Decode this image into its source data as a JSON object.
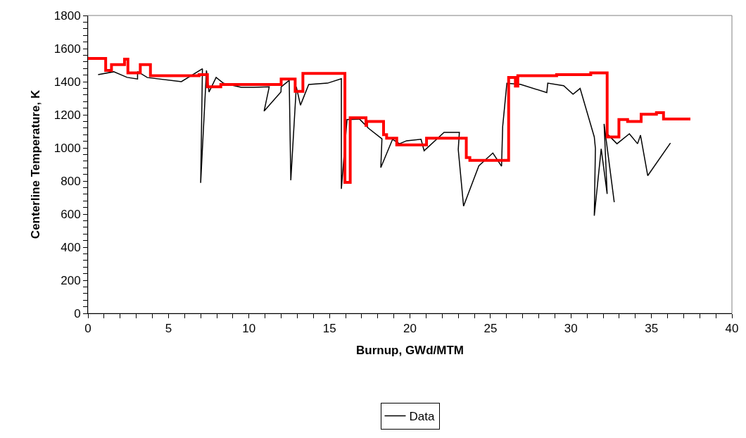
{
  "chart_data": {
    "type": "line",
    "xlabel": "Burnup, GWd/MTM",
    "ylabel": "Centerline Temperature, K",
    "xlim": [
      0,
      40
    ],
    "xticks": [
      0,
      {
        "value": 1,
        "label": null
      },
      {
        "value": 2,
        "label": null
      },
      {
        "value": 3,
        "label": null
      },
      {
        "value": 4,
        "label": null
      },
      5,
      {
        "value": 6,
        "label": null
      },
      {
        "value": 7,
        "label": null
      },
      {
        "value": 8,
        "label": null
      },
      {
        "value": 9,
        "label": null
      },
      10,
      {
        "value": 11,
        "label": null
      },
      {
        "value": 12,
        "label": null
      },
      {
        "value": 13,
        "label": null
      },
      {
        "value": 14,
        "label": null
      },
      15,
      {
        "value": 16,
        "label": null
      },
      {
        "value": 17,
        "label": null
      },
      {
        "value": 18,
        "label": null
      },
      {
        "value": 19,
        "label": null
      },
      20,
      {
        "value": 21,
        "label": null
      },
      {
        "value": 22,
        "label": null
      },
      {
        "value": 23,
        "label": null
      },
      {
        "value": 24,
        "label": null
      },
      25,
      {
        "value": 26,
        "label": null
      },
      {
        "value": 27,
        "label": null
      },
      {
        "value": 28,
        "label": null
      },
      {
        "value": 29,
        "label": null
      },
      30,
      {
        "value": 31,
        "label": null
      },
      {
        "value": 32,
        "label": null
      },
      {
        "value": 33,
        "label": null
      },
      {
        "value": 34,
        "label": null
      },
      35,
      {
        "value": 36,
        "label": null
      },
      {
        "value": 37,
        "label": null
      },
      {
        "value": 38,
        "label": null
      },
      {
        "value": 39,
        "label": null
      },
      40
    ],
    "ylim": [
      0,
      1800
    ],
    "yticks": [
      0,
      {
        "value": 40,
        "label": null
      },
      {
        "value": 80,
        "label": null
      },
      {
        "value": 120,
        "label": null
      },
      {
        "value": 160,
        "label": null
      },
      200,
      {
        "value": 240,
        "label": null
      },
      {
        "value": 280,
        "label": null
      },
      {
        "value": 320,
        "label": null
      },
      {
        "value": 360,
        "label": null
      },
      400,
      {
        "value": 440,
        "label": null
      },
      {
        "value": 480,
        "label": null
      },
      {
        "value": 520,
        "label": null
      },
      {
        "value": 560,
        "label": null
      },
      600,
      {
        "value": 640,
        "label": null
      },
      {
        "value": 680,
        "label": null
      },
      {
        "value": 720,
        "label": null
      },
      {
        "value": 760,
        "label": null
      },
      800,
      {
        "value": 840,
        "label": null
      },
      {
        "value": 880,
        "label": null
      },
      {
        "value": 920,
        "label": null
      },
      {
        "value": 960,
        "label": null
      },
      1000,
      {
        "value": 1040,
        "label": null
      },
      {
        "value": 1080,
        "label": null
      },
      {
        "value": 1120,
        "label": null
      },
      {
        "value": 1160,
        "label": null
      },
      1200,
      {
        "value": 1240,
        "label": null
      },
      {
        "value": 1280,
        "label": null
      },
      {
        "value": 1320,
        "label": null
      },
      {
        "value": 1360,
        "label": null
      },
      1400,
      {
        "value": 1440,
        "label": null
      },
      {
        "value": 1480,
        "label": null
      },
      {
        "value": 1520,
        "label": null
      },
      {
        "value": 1560,
        "label": null
      },
      1600,
      {
        "value": 1640,
        "label": null
      },
      {
        "value": 1680,
        "label": null
      },
      {
        "value": 1720,
        "label": null
      },
      {
        "value": 1760,
        "label": null
      },
      1800
    ],
    "grid": false,
    "legend": "bottom",
    "marker": "none",
    "series": [
      {
        "name": "Data",
        "color": "#000000",
        "line_style": "solid",
        "x": [
          0.63,
          1.6,
          2.43,
          3.08,
          3.08,
          3.69,
          5.8,
          7.11,
          7.0,
          7.36,
          7.52,
          7.96,
          8.42,
          9.52,
          10.3,
          11.26,
          10.94,
          11.99,
          12.0,
          12.5,
          12.6,
          12.94,
          13.2,
          13.71,
          14.88,
          15.74,
          15.74,
          16.09,
          16.87,
          17.43,
          18.26,
          18.19,
          18.92,
          19.35,
          19.79,
          20.69,
          20.88,
          22.12,
          23.07,
          23.0,
          23.33,
          24.28,
          25.15,
          25.69,
          25.76,
          26.02,
          26.86,
          28.5,
          28.56,
          29.55,
          30.13,
          30.57,
          31.45,
          31.52,
          31.45,
          31.88,
          32.25,
          32.06,
          32.69,
          null,
          32.2,
          32.86,
          33.63,
          34.14,
          34.32,
          34.77,
          36.18
        ],
        "values": [
          1443,
          1460,
          1426,
          1416,
          1461,
          1425,
          1400,
          1478,
          788,
          1468,
          1338,
          1426,
          1390,
          1366,
          1366,
          1369,
          1222,
          1338,
          1369,
          1408,
          804,
          1369,
          1258,
          1383,
          1391,
          1418,
          752,
          1171,
          1174,
          1118,
          1055,
          881,
          1052,
          1025,
          1043,
          1052,
          983,
          1094,
          1094,
          990,
          648,
          892,
          969,
          889,
          1129,
          1390,
          1384,
          1334,
          1391,
          1376,
          1324,
          1359,
          1066,
          997,
          590,
          994,
          722,
          1145,
          672,
          null,
          1090,
          1025,
          1085,
          1025,
          1077,
          832,
          1029
        ]
      },
      {
        "color": "#ff0000",
        "type": "step",
        "line_style": "solid",
        "x": [
          0,
          1.1,
          1.46,
          2.27,
          2.48,
          3.25,
          3.88,
          6.9,
          7.42,
          8.25,
          12.0,
          12.87,
          13.35,
          15.96,
          16.29,
          17.27,
          17.31,
          18.36,
          18.55,
          19.18,
          21.03,
          23.5,
          23.72,
          26.13,
          26.55,
          26.7,
          29.11,
          31.23,
          32.25,
          32.98,
          33.52,
          34.36,
          35.31,
          35.75,
          37.42
        ],
        "values": [
          1540,
          1468,
          1503,
          1536,
          1453,
          1503,
          1436,
          1443,
          1369,
          1383,
          1416,
          1342,
          1450,
          792,
          1182,
          1136,
          1160,
          1080,
          1059,
          1018,
          1059,
          941,
          924,
          1426,
          1373,
          1436,
          1443,
          1453,
          1066,
          1171,
          1160,
          1203,
          1213,
          1175,
          1175
        ]
      }
    ]
  }
}
